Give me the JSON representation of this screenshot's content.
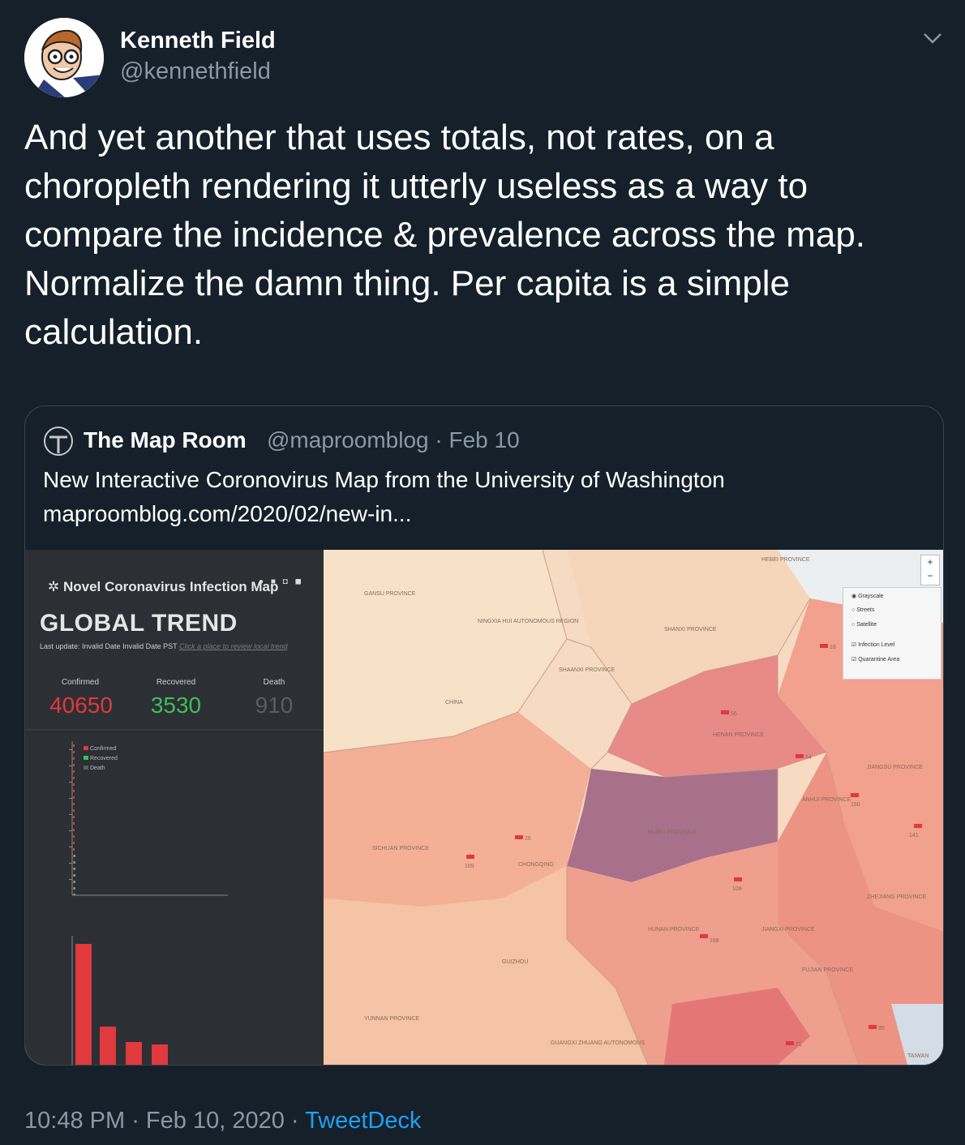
{
  "author": {
    "name": "Kenneth Field",
    "handle": "@kennethfield"
  },
  "tweet": {
    "lines": [
      "And yet another that uses totals, not rates, on a",
      "choropleth rendering it utterly useless as a way to",
      "compare the incidence & prevalence across the map.",
      "Normalize the damn thing. Per capita is a simple",
      "calculation."
    ]
  },
  "quote": {
    "name": "The Map Room",
    "handle_date": "@maproomblog · Feb 10",
    "text": "New Interactive Coronovirus Map from the University of Washington",
    "link": "maproomblog.com/2020/02/new-in..."
  },
  "embedded_map": {
    "panel_title": "Novel Coronavirus Infection Map",
    "heading": "GLOBAL TREND",
    "last_update": "Last update: Invalid Date Invalid Date PST",
    "last_update_link": "Click a place to review local trend",
    "stats": [
      {
        "label": "Confirmed",
        "value": "40650",
        "color": "#e0393e"
      },
      {
        "label": "Recovered",
        "value": "3530",
        "color": "#3fbf5a"
      },
      {
        "label": "Death",
        "value": "910",
        "color": "#5a5d61"
      }
    ],
    "legend": [
      "Confirmed",
      "Recovered",
      "Death"
    ],
    "layers": [
      "Grayscale",
      "Streets",
      "Satellite",
      "Infection Level",
      "Quarantine Area"
    ],
    "zoom": [
      "+",
      "−"
    ],
    "province_labels": [
      "HEBEI PROVINCE",
      "GANSU PROVINCE",
      "NINGXIA HUI AUTONOMOUS REGION",
      "SHANXI PROVINCE",
      "SHAANXI PROVINCE",
      "CHINA",
      "HENAN PROVINCE",
      "JIANGSU PROVINCE",
      "ANHUI PROVINCE",
      "HUBEI PROVINCE",
      "SICHUAN PROVINCE",
      "CHONGQING",
      "ZHEJIANG PROVINCE",
      "HUNAN PROVINCE",
      "JIANGXI PROVINCE",
      "FUJIAN PROVINCE",
      "GUIZHOU",
      "YUNNAN PROVINCE",
      "GUANGXI ZHUANG AUTONOMOUS",
      "TAIWAN"
    ],
    "markers": [
      "18",
      "56",
      "54",
      "150",
      "141",
      "26",
      "109",
      "109",
      "168",
      "95",
      "21"
    ]
  },
  "meta": {
    "time": "10:48 PM",
    "sep1": " · ",
    "date": "Feb 10, 2020",
    "sep2": " · ",
    "source": "TweetDeck"
  }
}
